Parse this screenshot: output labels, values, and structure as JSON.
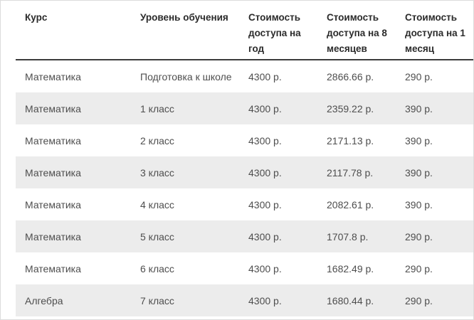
{
  "chart_data": {
    "type": "table",
    "title": "",
    "columns": [
      "Курс",
      "Уровень обучения",
      "Стоимость доступа на год",
      "Стоимость доступа на 8 месяцев",
      "Стоимость доступа на 1 месяц"
    ],
    "rows": [
      [
        "Математика",
        "Подготовка к школе",
        "4300 р.",
        "2866.66 р.",
        "290 р."
      ],
      [
        "Математика",
        "1 класс",
        "4300 р.",
        "2359.22 р.",
        "390 р."
      ],
      [
        "Математика",
        "2 класс",
        "4300 р.",
        "2171.13 р.",
        "390 р."
      ],
      [
        "Математика",
        "3 класс",
        "4300 р.",
        "2117.78 р.",
        "390 р."
      ],
      [
        "Математика",
        "4 класс",
        "4300 р.",
        "2082.61 р.",
        "390 р."
      ],
      [
        "Математика",
        "5 класс",
        "4300 р.",
        "1707.8 р.",
        "290 р."
      ],
      [
        "Математика",
        "6 класс",
        "4300 р.",
        "1682.49 р.",
        "290 р."
      ],
      [
        "Алгебра",
        "7 класс",
        "4300 р.",
        "1680.44 р.",
        "290 р."
      ]
    ],
    "currency_suffix": "р.",
    "numeric": {
      "price_year": [
        4300,
        4300,
        4300,
        4300,
        4300,
        4300,
        4300,
        4300
      ],
      "price_8_months": [
        2866.66,
        2359.22,
        2171.13,
        2117.78,
        2082.61,
        1707.8,
        1682.49,
        1680.44
      ],
      "price_1_month": [
        290,
        390,
        390,
        390,
        390,
        290,
        290,
        290
      ]
    }
  },
  "colors": {
    "stripe_bg": "#ececec",
    "header_text": "#2b2b2b",
    "body_text": "#4e4e4e",
    "header_rule": "#3c3c3c",
    "page_border": "#dcdcdc"
  }
}
